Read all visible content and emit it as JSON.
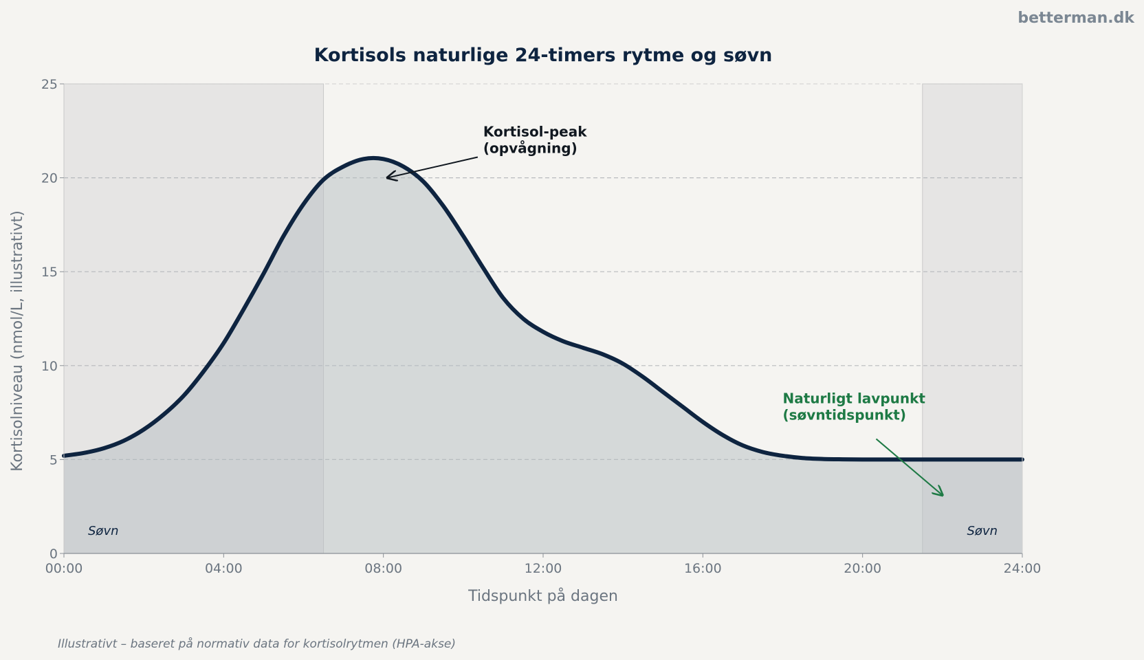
{
  "brand": "betterman.dk",
  "footnote": "Illustrativt – baseret på normativ data for kortisolrytmen (HPA-akse)",
  "colors": {
    "background": "#f5f4f1",
    "line": "#0e2440",
    "fill": "#d1d5d7",
    "sleep_band": "#d9d9d9",
    "annotation_low": "#1e7a45",
    "annotation_peak": "#111820"
  },
  "chart_data": {
    "type": "area",
    "title": "Kortisols naturlige 24-timers rytme og søvn",
    "xlabel": "Tidspunkt på dagen",
    "ylabel": "Kortisolniveau (nmol/L, illustrativt)",
    "xlim": [
      0,
      24
    ],
    "ylim": [
      0,
      25
    ],
    "x_ticks": [
      {
        "value": 0,
        "label": "00:00"
      },
      {
        "value": 4,
        "label": "04:00"
      },
      {
        "value": 8,
        "label": "08:00"
      },
      {
        "value": 12,
        "label": "12:00"
      },
      {
        "value": 16,
        "label": "16:00"
      },
      {
        "value": 20,
        "label": "20:00"
      },
      {
        "value": 24,
        "label": "24:00"
      }
    ],
    "y_ticks": [
      {
        "value": 0,
        "label": "0"
      },
      {
        "value": 5,
        "label": "5"
      },
      {
        "value": 10,
        "label": "10"
      },
      {
        "value": 15,
        "label": "15"
      },
      {
        "value": 20,
        "label": "20"
      },
      {
        "value": 25,
        "label": "25"
      }
    ],
    "grid": "horizontal-dashed",
    "series": [
      {
        "x": [
          0,
          0.5,
          1,
          1.5,
          2,
          2.5,
          3,
          3.5,
          4,
          4.5,
          5,
          5.5,
          6,
          6.5,
          7,
          7.5,
          8,
          8.5,
          9,
          9.5,
          10,
          10.5,
          11,
          11.5,
          12,
          12.5,
          13,
          13.5,
          14,
          14.5,
          15,
          15.5,
          16,
          16.5,
          17,
          17.5,
          18,
          18.5,
          19,
          19.5,
          20,
          20.5,
          21,
          21.5,
          22,
          22.5,
          23,
          23.5,
          24
        ],
        "y": [
          5.2,
          5.35,
          5.6,
          6.0,
          6.6,
          7.4,
          8.4,
          9.7,
          11.2,
          13.0,
          14.9,
          16.9,
          18.6,
          19.9,
          20.6,
          21.0,
          21.0,
          20.6,
          19.8,
          18.5,
          16.9,
          15.2,
          13.6,
          12.5,
          11.8,
          11.3,
          10.95,
          10.6,
          10.1,
          9.4,
          8.6,
          7.8,
          7.0,
          6.3,
          5.75,
          5.4,
          5.2,
          5.08,
          5.03,
          5.01,
          5.0,
          5.0,
          5.0,
          5.0,
          5.0,
          5.0,
          5.0,
          5.0,
          5.0
        ]
      }
    ],
    "sleep_periods": [
      {
        "start": 0,
        "end": 6.5,
        "label": "Søvn"
      },
      {
        "start": 21.5,
        "end": 24,
        "label": "Søvn"
      }
    ],
    "annotations": [
      {
        "id": "peak",
        "lines": [
          "Kortisol-peak",
          "(opvågning)"
        ],
        "point": [
          8.1,
          20
        ],
        "text_at": [
          10.5,
          22.2
        ]
      },
      {
        "id": "low",
        "lines": [
          "Naturligt lavpunkt",
          "(søvntidspunkt)"
        ],
        "point": [
          22.0,
          3.1
        ],
        "text_at": [
          18.0,
          8.0
        ]
      }
    ]
  }
}
